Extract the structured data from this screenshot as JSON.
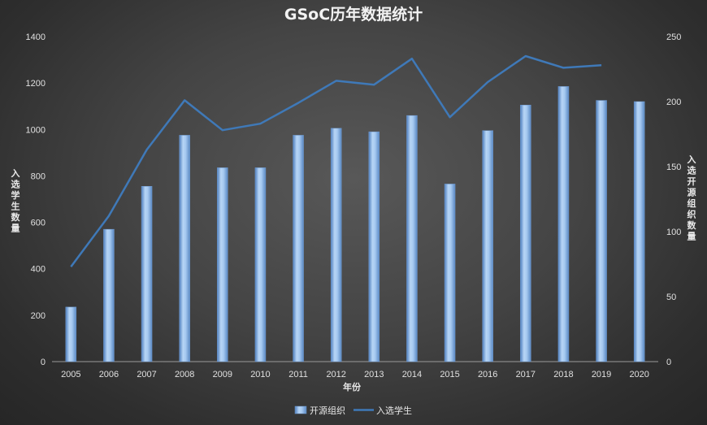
{
  "chart_data": {
    "type": "bar+line",
    "title": "GSoC历年数据统计",
    "xlabel": "年份",
    "ylabel_left": "入选学生数量",
    "ylabel_right": "入选开源组织数量",
    "categories": [
      "2005",
      "2006",
      "2007",
      "2008",
      "2009",
      "2010",
      "2011",
      "2012",
      "2013",
      "2014",
      "2015",
      "2016",
      "2017",
      "2018",
      "2019",
      "2020"
    ],
    "ylim_left": [
      0,
      1400
    ],
    "ylim_right": [
      0,
      250
    ],
    "yticks_left": [
      "0",
      "200",
      "400",
      "600",
      "800",
      "1000",
      "1200",
      "1400"
    ],
    "yticks_right": [
      "0",
      "50",
      "100",
      "150",
      "200",
      "250"
    ],
    "series": [
      {
        "name": "开源组织",
        "type": "bar",
        "axis": "left",
        "color": "#8db8e8",
        "values": [
          235,
          570,
          755,
          975,
          835,
          835,
          975,
          1005,
          990,
          1060,
          765,
          995,
          1105,
          1185,
          1125,
          1120
        ]
      },
      {
        "name": "入选学生",
        "type": "line",
        "axis": "right",
        "color": "#3f79b8",
        "values": [
          73,
          112,
          163,
          201,
          178,
          183,
          199,
          216,
          213,
          233,
          188,
          215,
          235,
          226,
          228,
          null
        ]
      }
    ],
    "grid": false,
    "legend_position": "bottom"
  }
}
